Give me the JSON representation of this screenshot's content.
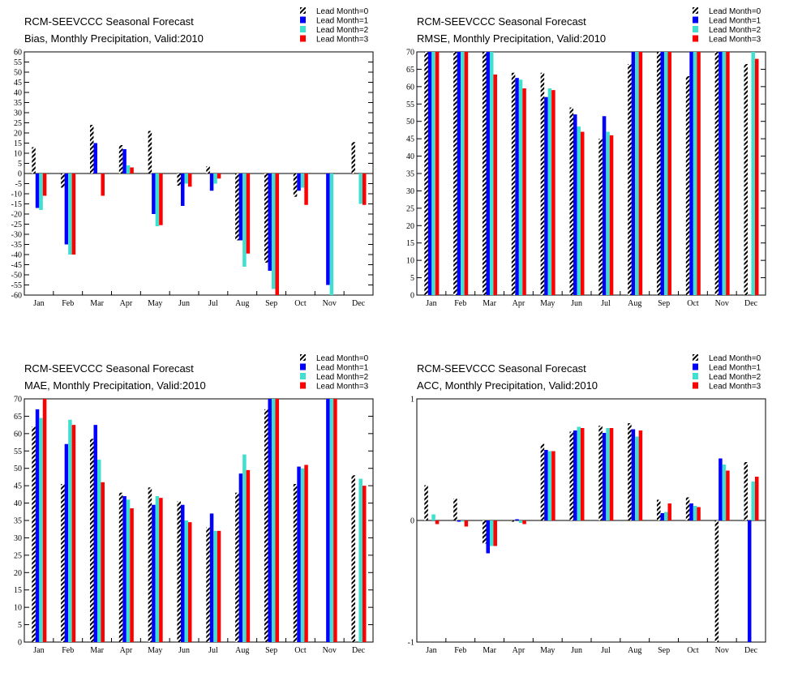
{
  "colors": {
    "lead0": "#000000",
    "lead1": "#0000ff",
    "lead2": "#40e0d0",
    "lead3": "#ff0000"
  },
  "legend": [
    "Lead Month=0",
    "Lead Month=1",
    "Lead Month=2",
    "Lead Month=3"
  ],
  "chart_data": [
    {
      "type": "bar",
      "title": "RCM-SEEVCCC Seasonal Forecast",
      "subtitle": "Bias, Monthly Precipitation, Valid:2010",
      "categories": [
        "Jan",
        "Feb",
        "Mar",
        "Apr",
        "May",
        "Jun",
        "Jul",
        "Aug",
        "Sep",
        "Oct",
        "Nov",
        "Dec"
      ],
      "ylim": [
        -60,
        60
      ],
      "yticks": [
        -60,
        -55,
        -50,
        -45,
        -40,
        -35,
        -30,
        -25,
        -20,
        -15,
        -10,
        -5,
        0,
        5,
        10,
        15,
        20,
        25,
        30,
        35,
        40,
        45,
        50,
        55,
        60
      ],
      "ytick_labels": [
        "-60",
        "-55",
        "-50",
        "-45",
        "-40",
        "-35",
        "-30",
        "-25",
        "-20",
        "-15",
        "-10",
        "-5",
        "0",
        "5",
        "10",
        "15",
        "20",
        "25",
        "30",
        "35",
        "40",
        "45",
        "50",
        "55",
        "60"
      ],
      "legend_position": "top-right",
      "grid": false,
      "series": [
        {
          "name": "Lead Month=0",
          "values": [
            13,
            -7,
            24,
            14,
            21,
            -6,
            3.5,
            -33,
            -44,
            -11.5,
            0,
            15.5
          ]
        },
        {
          "name": "Lead Month=1",
          "values": [
            -17,
            -35,
            15,
            12,
            -20,
            -16,
            -8.5,
            -33,
            -48,
            -8.5,
            -55,
            0
          ]
        },
        {
          "name": "Lead Month=2",
          "values": [
            -18,
            -40,
            0,
            4,
            -26,
            -5,
            -5,
            -46,
            -57,
            -7,
            -60,
            -15
          ]
        },
        {
          "name": "Lead Month=3",
          "values": [
            -11,
            -40,
            -11,
            3,
            -25.5,
            -6.5,
            -2.5,
            -39.5,
            -60,
            -15.5,
            0,
            -15.5
          ]
        }
      ]
    },
    {
      "type": "bar",
      "title": "RCM-SEEVCCC Seasonal Forecast",
      "subtitle": "RMSE, Monthly Precipitation, Valid:2010",
      "categories": [
        "Jan",
        "Feb",
        "Mar",
        "Apr",
        "May",
        "Jun",
        "Jul",
        "Aug",
        "Sep",
        "Oct",
        "Nov",
        "Dec"
      ],
      "ylim": [
        0,
        70
      ],
      "yticks": [
        0,
        5,
        10,
        15,
        20,
        25,
        30,
        35,
        40,
        45,
        50,
        55,
        60,
        65,
        70
      ],
      "ytick_labels": [
        "0",
        "5",
        "10",
        "15",
        "20",
        "25",
        "30",
        "35",
        "40",
        "45",
        "50",
        "55",
        "60",
        "65",
        "70"
      ],
      "legend_position": "top-right",
      "grid": false,
      "series": [
        {
          "name": "Lead Month=0",
          "values": [
            70,
            70,
            70,
            64,
            64,
            54,
            45,
            66.5,
            70,
            63,
            70,
            66.5
          ]
        },
        {
          "name": "Lead Month=1",
          "values": [
            70,
            70,
            70,
            62.5,
            57,
            52,
            51.5,
            70,
            70,
            70,
            70,
            0
          ]
        },
        {
          "name": "Lead Month=2",
          "values": [
            70,
            70,
            70,
            62,
            59.5,
            48.5,
            47,
            70,
            70,
            70,
            70,
            70
          ]
        },
        {
          "name": "Lead Month=3",
          "values": [
            70,
            70,
            63.5,
            59.5,
            59,
            47,
            46,
            70,
            70,
            70,
            70,
            68
          ]
        }
      ]
    },
    {
      "type": "bar",
      "title": "RCM-SEEVCCC Seasonal Forecast",
      "subtitle": "MAE, Monthly Precipitation, Valid:2010",
      "categories": [
        "Jan",
        "Feb",
        "Mar",
        "Apr",
        "May",
        "Jun",
        "Jul",
        "Aug",
        "Sep",
        "Oct",
        "Nov",
        "Dec"
      ],
      "ylim": [
        0,
        70
      ],
      "yticks": [
        0,
        5,
        10,
        15,
        20,
        25,
        30,
        35,
        40,
        45,
        50,
        55,
        60,
        65,
        70
      ],
      "ytick_labels": [
        "0",
        "5",
        "10",
        "15",
        "20",
        "25",
        "30",
        "35",
        "40",
        "45",
        "50",
        "55",
        "60",
        "65",
        "70"
      ],
      "legend_position": "top-right",
      "grid": false,
      "series": [
        {
          "name": "Lead Month=0",
          "values": [
            62,
            45.5,
            58.5,
            43,
            44.5,
            40.5,
            33,
            43,
            67,
            45.5,
            0,
            48
          ]
        },
        {
          "name": "Lead Month=1",
          "values": [
            67,
            57,
            62.5,
            42,
            39.5,
            39.5,
            37,
            48.5,
            70,
            50.5,
            70,
            0
          ]
        },
        {
          "name": "Lead Month=2",
          "values": [
            64.5,
            64,
            52.5,
            41,
            42,
            35,
            32,
            54,
            70,
            50,
            70,
            47
          ]
        },
        {
          "name": "Lead Month=3",
          "values": [
            70,
            62.5,
            46,
            38.5,
            41.5,
            34.5,
            32,
            49.5,
            70,
            51,
            70,
            45
          ]
        }
      ]
    },
    {
      "type": "bar",
      "title": "RCM-SEEVCCC Seasonal Forecast",
      "subtitle": "ACC, Monthly Precipitation, Valid:2010",
      "categories": [
        "Jan",
        "Feb",
        "Mar",
        "Apr",
        "May",
        "Jun",
        "Jul",
        "Aug",
        "Sep",
        "Oct",
        "Nov",
        "Dec"
      ],
      "ylim": [
        -1,
        1
      ],
      "yticks": [
        -1,
        0,
        1
      ],
      "ytick_labels": [
        "-1",
        "0",
        "1"
      ],
      "legend_position": "top-right",
      "grid": false,
      "series": [
        {
          "name": "Lead Month=0",
          "values": [
            0.29,
            0.18,
            -0.19,
            -0.01,
            0.63,
            0.73,
            0.78,
            0.8,
            0.17,
            0.19,
            -1,
            0.48
          ]
        },
        {
          "name": "Lead Month=1",
          "values": [
            0,
            -0.01,
            -0.27,
            0.01,
            0.58,
            0.74,
            0.72,
            0.75,
            0.06,
            0.14,
            0.51,
            -1
          ]
        },
        {
          "name": "Lead Month=2",
          "values": [
            0.05,
            -0.01,
            -0.21,
            -0.02,
            0.57,
            0.77,
            0.76,
            0.69,
            0.07,
            0.12,
            0.46,
            0.32
          ]
        },
        {
          "name": "Lead Month=3",
          "values": [
            -0.03,
            -0.05,
            -0.21,
            -0.03,
            0.57,
            0.76,
            0.76,
            0.74,
            0.14,
            0.11,
            0.41,
            0.36
          ]
        }
      ]
    }
  ]
}
